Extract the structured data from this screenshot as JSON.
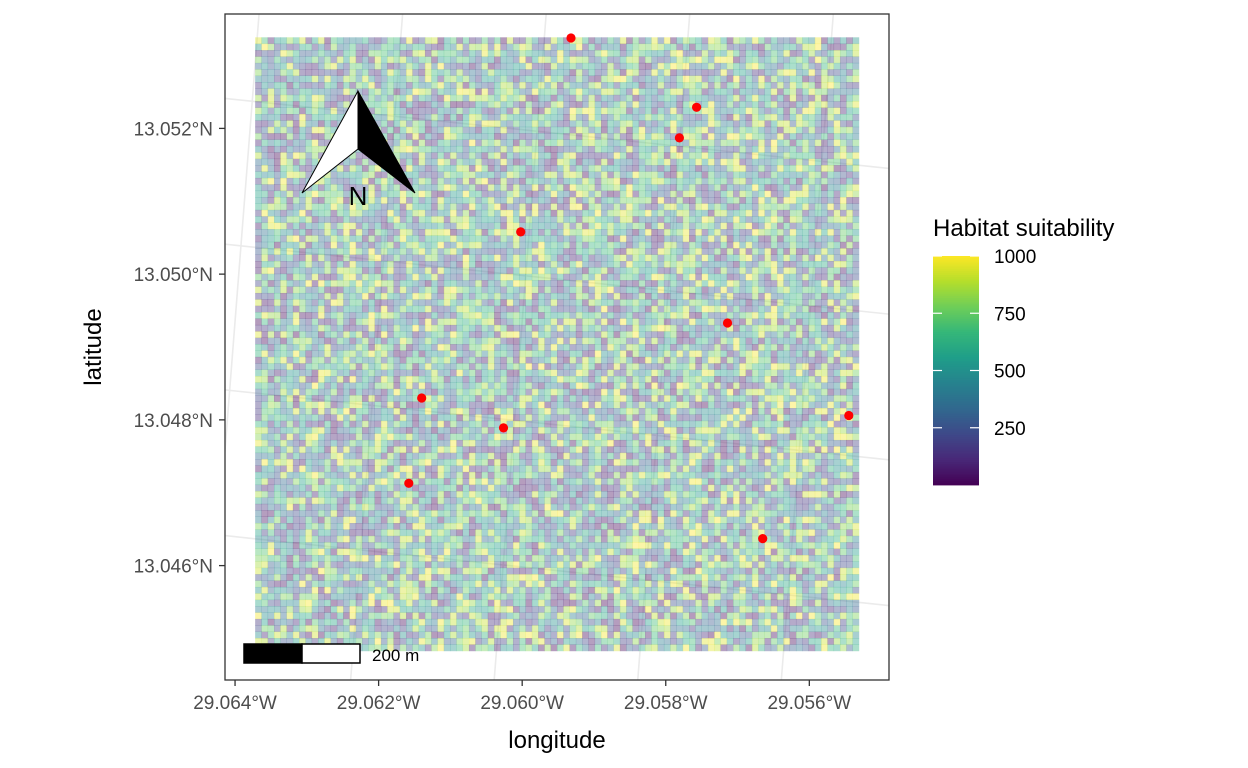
{
  "chart_data": {
    "type": "heatmap",
    "title": "",
    "xlabel": "longitude",
    "ylabel": "latitude",
    "x_ticks": [
      {
        "value": -29.064,
        "label": "29.064°W"
      },
      {
        "value": -29.062,
        "label": "29.062°W"
      },
      {
        "value": -29.06,
        "label": "29.060°W"
      },
      {
        "value": -29.058,
        "label": "29.058°W"
      },
      {
        "value": -29.056,
        "label": "29.056°W"
      }
    ],
    "y_ticks": [
      {
        "value": 13.046,
        "label": "13.046°N"
      },
      {
        "value": 13.048,
        "label": "13.048°N"
      },
      {
        "value": 13.05,
        "label": "13.050°N"
      },
      {
        "value": 13.052,
        "label": "13.052°N"
      }
    ],
    "xlim": [
      -29.06414,
      -29.05489
    ],
    "ylim": [
      13.04443,
      13.05357
    ],
    "raster_extent": {
      "x": [
        -29.06372,
        -29.05531
      ],
      "y": [
        13.04483,
        13.05325
      ]
    },
    "raster": {
      "cols": 96,
      "rows": 96,
      "value_range": [
        0,
        1000
      ],
      "alpha": 0.4,
      "pattern": "random noise"
    },
    "points": [
      {
        "x": -29.05932,
        "y": 13.05324
      },
      {
        "x": -29.05757,
        "y": 13.05229
      },
      {
        "x": -29.05781,
        "y": 13.05187
      },
      {
        "x": -29.06002,
        "y": 13.05058
      },
      {
        "x": -29.05714,
        "y": 13.04933
      },
      {
        "x": -29.0614,
        "y": 13.0483
      },
      {
        "x": -29.06026,
        "y": 13.04789
      },
      {
        "x": -29.05545,
        "y": 13.04806
      },
      {
        "x": -29.06158,
        "y": 13.04713
      },
      {
        "x": -29.05665,
        "y": 13.04637
      }
    ],
    "point_color": "#ff0000",
    "legend": {
      "title": "Habitat suitability",
      "position": "right",
      "range": [
        0,
        1000
      ],
      "breaks": [
        {
          "value": 250,
          "label": "250"
        },
        {
          "value": 500,
          "label": "500"
        },
        {
          "value": 750,
          "label": "750"
        },
        {
          "value": 1000,
          "label": "1000"
        }
      ],
      "colormap": "viridis"
    },
    "scale_bar": {
      "label": "200 m"
    },
    "north_arrow": {
      "label": "N"
    },
    "panel_background": "#ffffff",
    "grid": true,
    "grid_color": "#ebebeb"
  }
}
